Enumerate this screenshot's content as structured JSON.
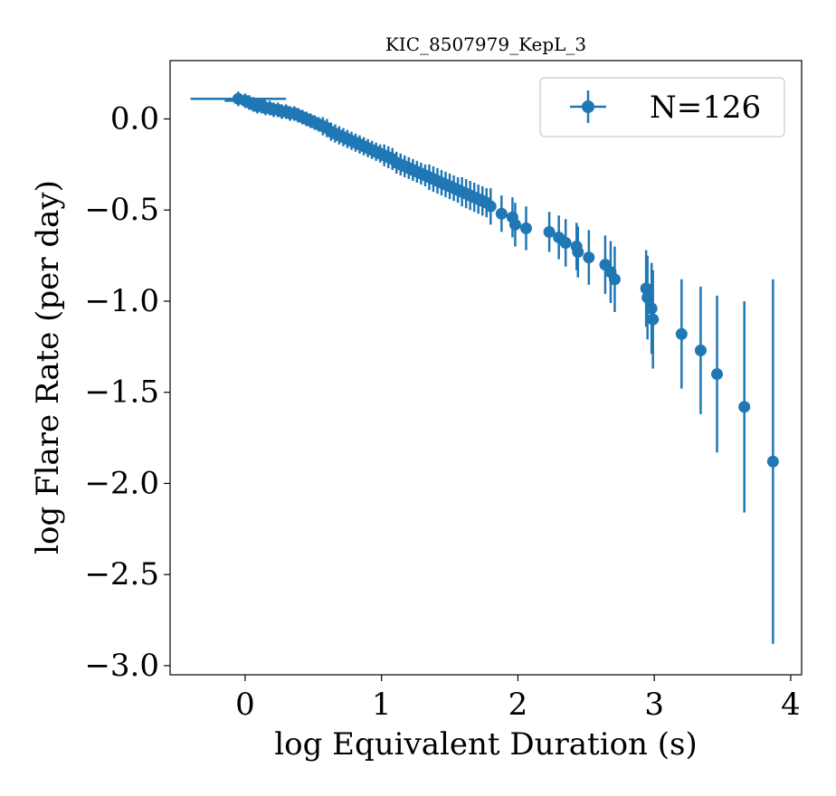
{
  "chart_data": {
    "type": "scatter",
    "title": "KIC_8507979_KepL_3",
    "xlabel": "log Equivalent Duration (s)",
    "ylabel": "log Flare Rate (per day)",
    "xlim": [
      -0.55,
      4.08
    ],
    "ylim": [
      -3.05,
      0.32
    ],
    "xticks": [
      0,
      1,
      2,
      3,
      4
    ],
    "xtick_labels": [
      "0",
      "1",
      "2",
      "3",
      "4"
    ],
    "yticks": [
      0.0,
      -0.5,
      -1.0,
      -1.5,
      -2.0,
      -2.5,
      -3.0
    ],
    "ytick_labels": [
      "0.0",
      "−0.5",
      "−1.0",
      "−1.5",
      "−2.0",
      "−2.5",
      "−3.0"
    ],
    "grid": false,
    "legend": {
      "position": "top-right",
      "label": "N=126"
    },
    "series": [
      {
        "name": "N=126",
        "color": "#1f77b4",
        "marker": "circle",
        "x": [
          -0.05,
          0.0,
          0.03,
          0.06,
          0.09,
          0.12,
          0.15,
          0.18,
          0.21,
          0.24,
          0.27,
          0.3,
          0.33,
          0.36,
          0.39,
          0.42,
          0.45,
          0.48,
          0.51,
          0.54,
          0.57,
          0.6,
          0.63,
          0.66,
          0.69,
          0.72,
          0.75,
          0.78,
          0.81,
          0.84,
          0.87,
          0.9,
          0.93,
          0.96,
          0.99,
          1.02,
          1.05,
          1.08,
          1.11,
          1.14,
          1.17,
          1.2,
          1.23,
          1.26,
          1.29,
          1.32,
          1.35,
          1.38,
          1.41,
          1.44,
          1.47,
          1.5,
          1.53,
          1.56,
          1.59,
          1.62,
          1.65,
          1.68,
          1.71,
          1.74,
          1.77,
          1.8,
          1.88,
          1.96,
          1.98,
          2.06,
          2.23,
          2.3,
          2.35,
          2.43,
          2.44,
          2.52,
          2.64,
          2.68,
          2.71,
          2.94,
          2.95,
          2.98,
          2.99,
          3.2,
          3.34,
          3.46,
          3.66,
          3.87
        ],
        "y": [
          0.11,
          0.1,
          0.09,
          0.08,
          0.07,
          0.07,
          0.06,
          0.06,
          0.05,
          0.05,
          0.04,
          0.04,
          0.03,
          0.03,
          0.02,
          0.01,
          0.0,
          -0.01,
          -0.02,
          -0.03,
          -0.04,
          -0.05,
          -0.07,
          -0.08,
          -0.09,
          -0.1,
          -0.11,
          -0.12,
          -0.13,
          -0.14,
          -0.15,
          -0.16,
          -0.17,
          -0.18,
          -0.19,
          -0.2,
          -0.21,
          -0.22,
          -0.24,
          -0.25,
          -0.26,
          -0.27,
          -0.28,
          -0.29,
          -0.3,
          -0.31,
          -0.32,
          -0.33,
          -0.34,
          -0.35,
          -0.36,
          -0.37,
          -0.38,
          -0.39,
          -0.4,
          -0.41,
          -0.42,
          -0.43,
          -0.44,
          -0.45,
          -0.46,
          -0.48,
          -0.52,
          -0.54,
          -0.58,
          -0.6,
          -0.62,
          -0.65,
          -0.68,
          -0.7,
          -0.73,
          -0.76,
          -0.8,
          -0.84,
          -0.88,
          -0.93,
          -0.98,
          -1.04,
          -1.1,
          -1.18,
          -1.27,
          -1.4,
          -1.58,
          -1.88
        ],
        "yerr": [
          0.04,
          0.04,
          0.04,
          0.04,
          0.04,
          0.04,
          0.04,
          0.04,
          0.04,
          0.04,
          0.04,
          0.04,
          0.04,
          0.04,
          0.04,
          0.04,
          0.04,
          0.04,
          0.04,
          0.04,
          0.05,
          0.05,
          0.05,
          0.05,
          0.05,
          0.05,
          0.05,
          0.05,
          0.05,
          0.05,
          0.05,
          0.05,
          0.05,
          0.05,
          0.05,
          0.06,
          0.06,
          0.06,
          0.06,
          0.06,
          0.06,
          0.06,
          0.06,
          0.06,
          0.06,
          0.06,
          0.07,
          0.07,
          0.07,
          0.07,
          0.07,
          0.07,
          0.07,
          0.07,
          0.08,
          0.08,
          0.08,
          0.08,
          0.08,
          0.08,
          0.08,
          0.1,
          0.1,
          0.11,
          0.12,
          0.12,
          0.11,
          0.12,
          0.13,
          0.13,
          0.14,
          0.15,
          0.16,
          0.17,
          0.18,
          0.21,
          0.23,
          0.25,
          0.27,
          0.3,
          0.35,
          0.43,
          0.58,
          1.0
        ],
        "xerr": [
          0.35,
          0.15,
          0.1,
          0.08,
          0.06,
          0.05,
          0.05,
          0.04,
          0.04,
          0.03,
          0.03,
          0.03,
          0.03,
          0.02,
          0.02,
          0.02,
          0.02,
          0.02,
          0.02,
          0.02,
          0.02,
          0.02,
          0.02,
          0.02,
          0.02,
          0.02,
          0.02,
          0.02,
          0.02,
          0.02,
          0.02,
          0.02,
          0.02,
          0.02,
          0.02,
          0.02,
          0.02,
          0.02,
          0.02,
          0.02,
          0.02,
          0.02,
          0.02,
          0.02,
          0.02,
          0.02,
          0.02,
          0.02,
          0.02,
          0.02,
          0.02,
          0.02,
          0.02,
          0.02,
          0.02,
          0.02,
          0.02,
          0.02,
          0.02,
          0.02,
          0.02,
          0.02,
          0,
          0,
          0,
          0,
          0,
          0,
          0,
          0,
          0,
          0,
          0,
          0,
          0,
          0,
          0,
          0,
          0,
          0,
          0,
          0,
          0,
          0
        ]
      }
    ]
  }
}
